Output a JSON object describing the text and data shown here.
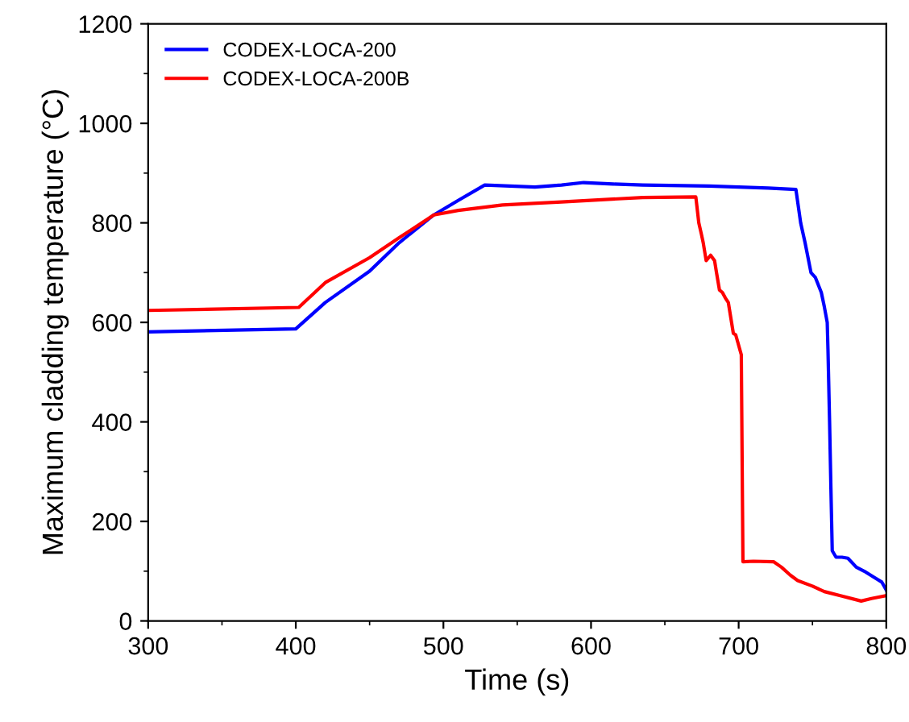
{
  "chart_data": {
    "type": "line",
    "xlabel": "Time (s)",
    "ylabel": "Maximum cladding temperature (°C)",
    "xlim": [
      300,
      800
    ],
    "xticks": [
      300,
      400,
      500,
      600,
      700,
      800
    ],
    "ylim": [
      0,
      1200
    ],
    "yticks": [
      0,
      200,
      400,
      600,
      800,
      1000,
      1200
    ],
    "grid": false,
    "legend": "top left",
    "marker": "none",
    "line_style": "solid",
    "series": [
      {
        "name": "CODEX-LOCA-200",
        "color": "#0000ff",
        "x": [
          300,
          400,
          420,
          450,
          470,
          493.5,
          510,
          528,
          545,
          562,
          580,
          595,
          615,
          635,
          680,
          720,
          738.8,
          742,
          745,
          749,
          752,
          756,
          758,
          760,
          760.5,
          761.6,
          762.5,
          763.4,
          766,
          770,
          774,
          779.7,
          785,
          792,
          797,
          800
        ],
        "values": [
          581,
          587,
          640,
          703,
          760,
          816,
          845,
          876,
          874,
          872,
          876,
          881,
          878,
          876,
          874,
          870,
          867,
          800,
          760,
          700,
          690,
          660,
          632,
          600,
          546,
          400,
          266,
          141,
          128,
          128,
          126,
          108,
          100,
          87,
          78,
          62
        ]
      },
      {
        "name": "CODEX-LOCA-200B",
        "color": "#ff0000",
        "x": [
          300,
          402,
          420,
          450,
          470,
          493.5,
          510,
          540,
          580,
          635,
          671,
          673,
          674.7,
          676,
          678,
          681,
          683.7,
          685,
          687,
          689,
          691,
          693,
          696.4,
          698,
          701.8,
          702.9,
          710,
          723.6,
          729,
          735,
          740,
          750,
          758,
          770,
          783,
          790,
          800
        ],
        "values": [
          624,
          630,
          680,
          730,
          770,
          816,
          825,
          836,
          842,
          851,
          852,
          800,
          778,
          760,
          724,
          735,
          724,
          700,
          665,
          660,
          649,
          640,
          578,
          575,
          535,
          119,
          120,
          119,
          108,
          92,
          81,
          70,
          59,
          50,
          40,
          45,
          51
        ]
      }
    ]
  }
}
